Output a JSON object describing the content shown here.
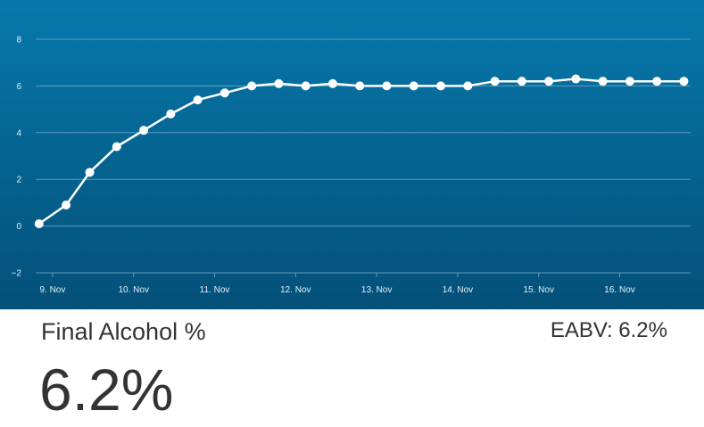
{
  "panel": {
    "metric_label": "Final Alcohol %",
    "metric_value": "6.2%",
    "eabv_label": "EABV: 6.2%"
  },
  "colors": {
    "panel_top": "#0679ae",
    "panel_bottom": "#04507a",
    "line": "#ffffff",
    "grid": "#5f9bbd",
    "text": "#333333"
  },
  "chart_data": {
    "type": "line",
    "title": "",
    "xlabel": "",
    "ylabel": "",
    "ylim": [
      -2,
      8
    ],
    "yticks": [
      {
        "value": 8,
        "label": "8"
      },
      {
        "value": 6,
        "label": "6"
      },
      {
        "value": 4,
        "label": "4"
      },
      {
        "value": 2,
        "label": "2"
      },
      {
        "value": 0,
        "label": "0"
      },
      {
        "value": -2,
        "label": "−2"
      }
    ],
    "xlim": [
      "2023-11-08T19:00",
      "2023-11-16T21:00"
    ],
    "xticks": [
      {
        "value": "2023-11-09T00:00",
        "label": "9. Nov"
      },
      {
        "value": "2023-11-10T00:00",
        "label": "10. Nov"
      },
      {
        "value": "2023-11-11T00:00",
        "label": "11. Nov"
      },
      {
        "value": "2023-11-12T00:00",
        "label": "12. Nov"
      },
      {
        "value": "2023-11-13T00:00",
        "label": "13. Nov"
      },
      {
        "value": "2023-11-14T00:00",
        "label": "14. Nov"
      },
      {
        "value": "2023-11-15T00:00",
        "label": "15. Nov"
      },
      {
        "value": "2023-11-16T00:00",
        "label": "16. Nov"
      }
    ],
    "grid": true,
    "series": [
      {
        "x": [
          "2023-11-08T20:00",
          "2023-11-09T04:00",
          "2023-11-09T11:00",
          "2023-11-09T19:00",
          "2023-11-10T03:00",
          "2023-11-10T11:00",
          "2023-11-10T19:00",
          "2023-11-11T03:00",
          "2023-11-11T11:00",
          "2023-11-11T19:00",
          "2023-11-12T03:00",
          "2023-11-12T11:00",
          "2023-11-12T19:00",
          "2023-11-13T03:00",
          "2023-11-13T11:00",
          "2023-11-13T19:00",
          "2023-11-14T03:00",
          "2023-11-14T11:00",
          "2023-11-14T19:00",
          "2023-11-15T03:00",
          "2023-11-15T11:00",
          "2023-11-15T19:00",
          "2023-11-16T03:00",
          "2023-11-16T11:00",
          "2023-11-16T19:00"
        ],
        "y": [
          0.1,
          0.9,
          2.3,
          3.4,
          4.1,
          4.8,
          5.4,
          5.7,
          6.0,
          6.1,
          6.0,
          6.1,
          6.0,
          6.0,
          6.0,
          6.0,
          6.0,
          6.2,
          6.2,
          6.2,
          6.3,
          6.2,
          6.2,
          6.2,
          6.2
        ]
      }
    ]
  }
}
